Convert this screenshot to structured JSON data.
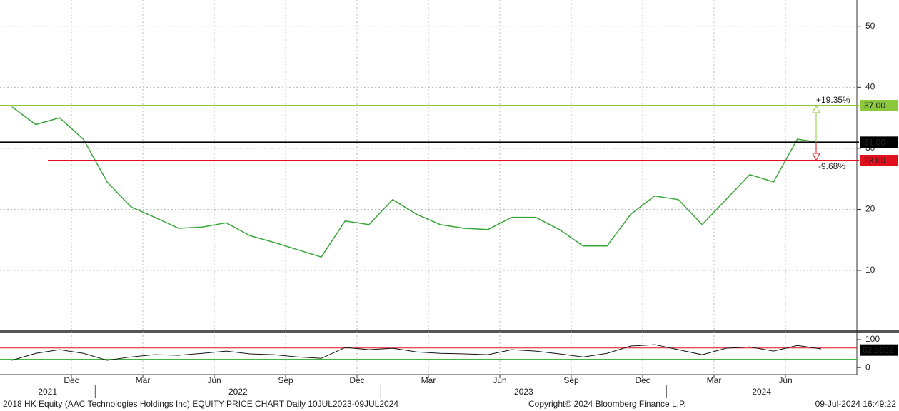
{
  "chart_data": {
    "type": "line",
    "x": [
      "2021-09",
      "2021-10",
      "2021-11",
      "2021-12",
      "2022-01",
      "2022-02",
      "2022-03",
      "2022-04",
      "2022-05",
      "2022-06",
      "2022-07",
      "2022-08",
      "2022-09",
      "2022-10",
      "2022-11",
      "2022-12",
      "2023-01",
      "2023-02",
      "2023-03",
      "2023-04",
      "2023-05",
      "2023-06",
      "2023-07",
      "2023-08",
      "2023-09",
      "2023-10",
      "2023-11",
      "2023-12",
      "2024-01",
      "2024-02",
      "2024-03",
      "2024-04",
      "2024-05",
      "2024-06",
      "2024-07"
    ],
    "xlim": [
      "2021-09",
      "2024-09"
    ],
    "series": [
      {
        "color": "#3aa63a",
        "values": [
          36.8,
          33.9,
          35,
          31.5,
          24.5,
          20.4,
          18.7,
          16.9,
          17.1,
          17.8,
          15.7,
          14.6,
          13.4,
          12.2,
          18.1,
          17.5,
          21.6,
          19.2,
          17.5,
          16.9,
          16.7,
          18.7,
          18.7,
          16.7,
          14,
          14,
          19.2,
          22.2,
          21.6,
          17.5,
          21.6,
          25.7,
          24.5,
          31.5,
          30.9
        ]
      }
    ],
    "ylim": [
      0.3,
      54.3
    ],
    "yticks": [
      10,
      20,
      30,
      40,
      50
    ],
    "grid": true,
    "levels": [
      {
        "value": 37,
        "label": "37.00",
        "color": "#8cc83c"
      },
      {
        "value": 31,
        "label": "31.00",
        "color": "#000000"
      },
      {
        "value": 28,
        "label": "28.00",
        "color": "#e0101e"
      }
    ],
    "annotations": [
      {
        "text": "+19.35%",
        "color": "#8cc83c"
      },
      {
        "text": "-9.68%",
        "color": "#e0101e"
      }
    ],
    "rsi": {
      "color": "#111111",
      "values": [
        26,
        51,
        64,
        51,
        26,
        38,
        46,
        44,
        51,
        59,
        49,
        46,
        38,
        33,
        72,
        64,
        69,
        56,
        51,
        49,
        46,
        64,
        59,
        49,
        38,
        51,
        77,
        82,
        64,
        46,
        69,
        74,
        59,
        79,
        67
      ],
      "last_value": 62.5682,
      "ylim": [
        -25,
        123
      ],
      "yticks": [
        0,
        100
      ],
      "overbought": 70,
      "oversold": 30,
      "overbought_color": "#e0101e",
      "oversold_color": "#3ab83a"
    },
    "xticks": [
      {
        "value": "2021-12",
        "label": "Dec"
      },
      {
        "value": "2022-03",
        "label": "Mar"
      },
      {
        "value": "2022-06",
        "label": "Jun"
      },
      {
        "value": "2022-09",
        "label": "Sep"
      },
      {
        "value": "2022-12",
        "label": "Dec"
      },
      {
        "value": "2023-03",
        "label": "Mar"
      },
      {
        "value": "2023-06",
        "label": "Jun"
      },
      {
        "value": "2023-09",
        "label": "Sep"
      },
      {
        "value": "2023-12",
        "label": "Dec"
      },
      {
        "value": "2024-03",
        "label": "Mar"
      },
      {
        "value": "2024-06",
        "label": "Jun"
      }
    ],
    "years": [
      "2021",
      "2022",
      "2023",
      "2024"
    ],
    "footer": {
      "title": "2018 HK Equity (AAC Technologies Holdings Inc) EQUITY PRICE CHART  Daily 10JUL2023-09JUL2024",
      "copyright": "Copyright© 2024 Bloomberg Finance L.P.",
      "timestamp": "09-Jul-2024 16:49:22"
    }
  }
}
